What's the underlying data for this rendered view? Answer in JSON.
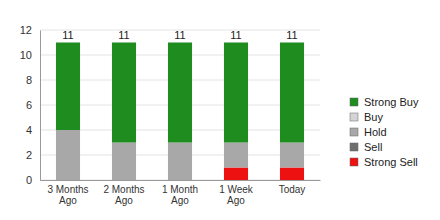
{
  "chart_data": {
    "type": "bar",
    "stacked": true,
    "grid": true,
    "legend": "right",
    "categories": [
      "3 Months Ago",
      "2 Months Ago",
      "1 Month Ago",
      "1 Week Ago",
      "Today"
    ],
    "series": [
      {
        "name": "Strong Buy",
        "color": "#1e8c1e",
        "values": [
          7,
          8,
          8,
          8,
          8
        ]
      },
      {
        "name": "Buy",
        "color": "#d4d4d4",
        "values": [
          0,
          0,
          0,
          0,
          0
        ]
      },
      {
        "name": "Hold",
        "color": "#a8a8a8",
        "values": [
          4,
          3,
          3,
          2,
          2
        ]
      },
      {
        "name": "Sell",
        "color": "#6e6e6e",
        "values": [
          0,
          0,
          0,
          0,
          0
        ]
      },
      {
        "name": "Strong Sell",
        "color": "#ee1111",
        "values": [
          0,
          0,
          0,
          1,
          1
        ]
      }
    ],
    "totals": [
      11,
      11,
      11,
      11,
      11
    ],
    "ylim": [
      0,
      12
    ],
    "yticks": [
      0,
      2,
      4,
      6,
      8,
      10,
      12
    ]
  }
}
